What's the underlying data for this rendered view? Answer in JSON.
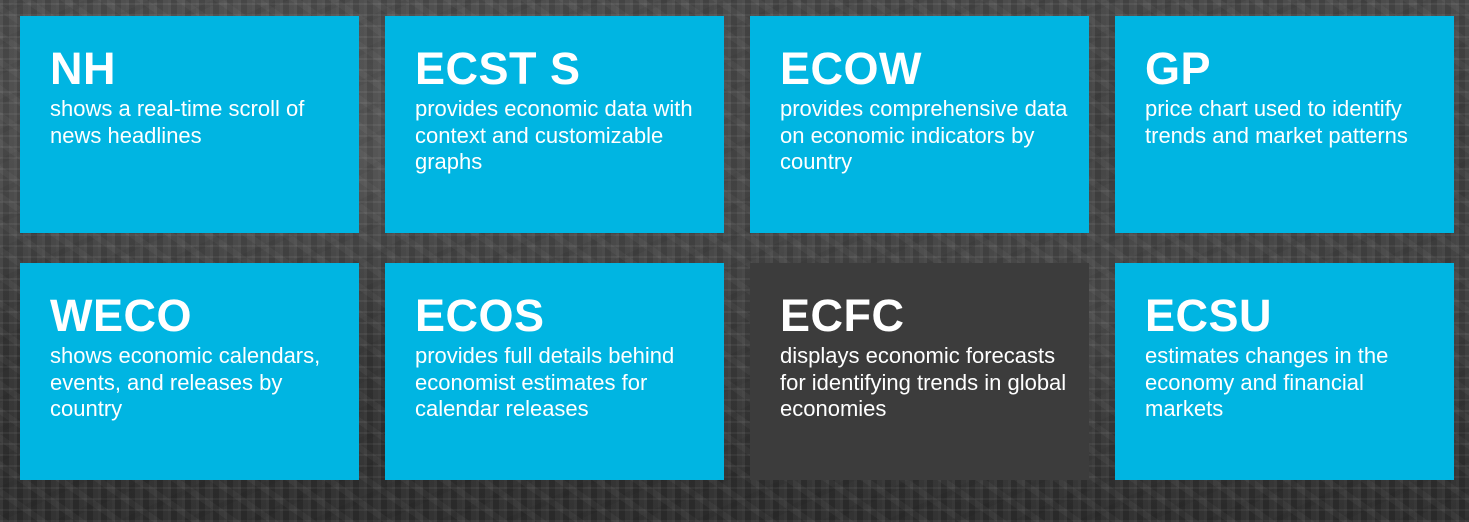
{
  "tiles": [
    {
      "code": "NH",
      "description": "shows a real-time scroll of news headlines",
      "highlighted": false
    },
    {
      "code": "ECST S",
      "description": "provides economic data with context and customizable graphs",
      "highlighted": false
    },
    {
      "code": "ECOW",
      "description": "provides comprehensive data on economic indicators by country",
      "highlighted": false
    },
    {
      "code": "GP",
      "description": "price chart used to identify trends and market patterns",
      "highlighted": false
    },
    {
      "code": "WECO",
      "description": "shows economic calendars, events, and releases by country",
      "highlighted": false
    },
    {
      "code": "ECOS",
      "description": "provides full details behind economist estimates for calendar releases",
      "highlighted": false
    },
    {
      "code": "ECFC",
      "description": "displays economic forecasts for identifying trends in global economies",
      "highlighted": true
    },
    {
      "code": "ECSU",
      "description": "estimates changes in the economy and financial markets",
      "highlighted": false
    }
  ],
  "colors": {
    "tile": "#00b5e2",
    "tile_highlighted": "#3c3c3c",
    "text": "#ffffff"
  }
}
